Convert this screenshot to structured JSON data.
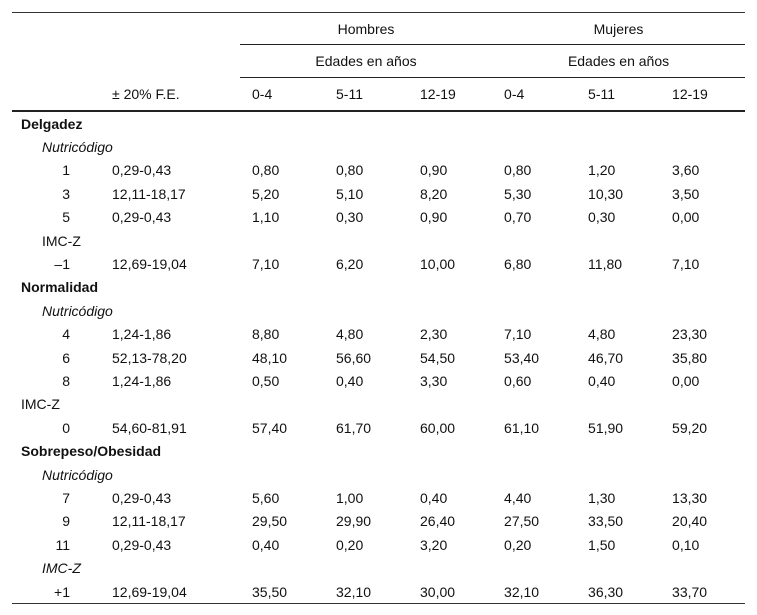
{
  "header": {
    "fe_label": "± 20% F.E.",
    "groups": [
      {
        "name": "Hombres",
        "subtitle": "Edades en años",
        "ages": [
          "0-4",
          "5-11",
          "12-19"
        ]
      },
      {
        "name": "Mujeres",
        "subtitle": "Edades en años",
        "ages": [
          "0-4",
          "5-11",
          "12-19"
        ]
      }
    ]
  },
  "sections": [
    {
      "title": "Delgadez",
      "subgroups": [
        {
          "title": "Nutricódigo",
          "rows": [
            {
              "code": "1",
              "fe": "0,29-0,43",
              "values": [
                "0,80",
                "0,80",
                "0,90",
                "0,80",
                "1,20",
                "3,60"
              ]
            },
            {
              "code": "3",
              "fe": "12,11-18,17",
              "values": [
                "5,20",
                "5,10",
                "8,20",
                "5,30",
                "10,30",
                "3,50"
              ]
            },
            {
              "code": "5",
              "fe": "0,29-0,43",
              "values": [
                "1,10",
                "0,30",
                "0,90",
                "0,70",
                "0,30",
                "0,00"
              ]
            }
          ]
        },
        {
          "title": "IMC-Z",
          "rows": [
            {
              "code": "–1",
              "fe": "12,69-19,04",
              "values": [
                "7,10",
                "6,20",
                "10,00",
                "6,80",
                "11,80",
                "7,10"
              ]
            }
          ]
        }
      ]
    },
    {
      "title": "Normalidad",
      "subgroups": [
        {
          "title": "Nutricódigo",
          "rows": [
            {
              "code": "4",
              "fe": "1,24-1,86",
              "values": [
                "8,80",
                "4,80",
                "2,30",
                "7,10",
                "4,80",
                "23,30"
              ]
            },
            {
              "code": "6",
              "fe": "52,13-78,20",
              "values": [
                "48,10",
                "56,60",
                "54,50",
                "53,40",
                "46,70",
                "35,80"
              ]
            },
            {
              "code": "8",
              "fe": "1,24-1,86",
              "values": [
                "0,50",
                "0,40",
                "3,30",
                "0,60",
                "0,40",
                "0,00"
              ]
            }
          ]
        },
        {
          "title": "IMC-Z",
          "rows": [
            {
              "code": "0",
              "fe": "54,60-81,91",
              "values": [
                "57,40",
                "61,70",
                "60,00",
                "61,10",
                "51,90",
                "59,20"
              ]
            }
          ]
        }
      ]
    },
    {
      "title": "Sobrepeso/Obesidad",
      "subgroups": [
        {
          "title": "Nutricódigo",
          "rows": [
            {
              "code": "7",
              "fe": "0,29-0,43",
              "values": [
                "5,60",
                "1,00",
                "0,40",
                "4,40",
                "1,30",
                "13,30"
              ]
            },
            {
              "code": "9",
              "fe": "12,11-18,17",
              "values": [
                "29,50",
                "29,90",
                "26,40",
                "27,50",
                "33,50",
                "20,40"
              ]
            },
            {
              "code": "11",
              "fe": "0,29-0,43",
              "values": [
                "0,40",
                "0,20",
                "3,20",
                "0,20",
                "1,50",
                "0,10"
              ]
            }
          ]
        },
        {
          "title": "IMC-Z",
          "rows": [
            {
              "code": "+1",
              "fe": "12,69-19,04",
              "values": [
                "35,50",
                "32,10",
                "30,00",
                "32,10",
                "36,30",
                "33,70"
              ]
            }
          ]
        }
      ]
    }
  ]
}
